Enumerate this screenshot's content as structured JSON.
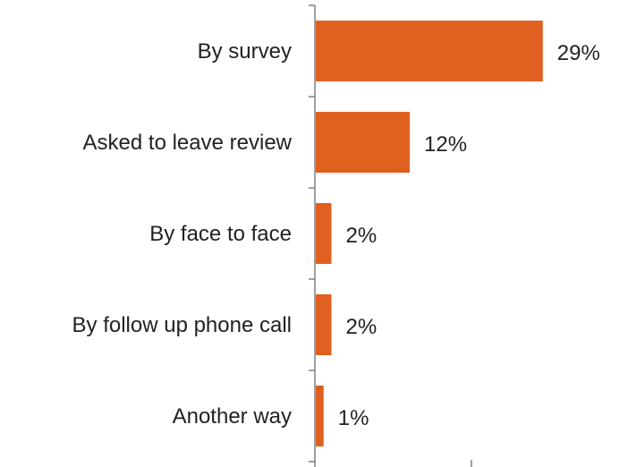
{
  "chart_data": {
    "type": "bar",
    "orientation": "horizontal",
    "categories": [
      "By survey",
      "Asked to leave review",
      "By face to face",
      "By follow up phone call",
      "Another way"
    ],
    "values": [
      29,
      12,
      2,
      2,
      1
    ],
    "value_labels": [
      "29%",
      "12%",
      "2%",
      "2%",
      "1%"
    ],
    "title": "",
    "xlabel": "",
    "ylabel": "",
    "xlim": [
      0,
      40
    ],
    "grid": false,
    "legend": "none",
    "colors": {
      "bar": "#E06020",
      "axis": "#808080",
      "text": "#222222"
    }
  }
}
